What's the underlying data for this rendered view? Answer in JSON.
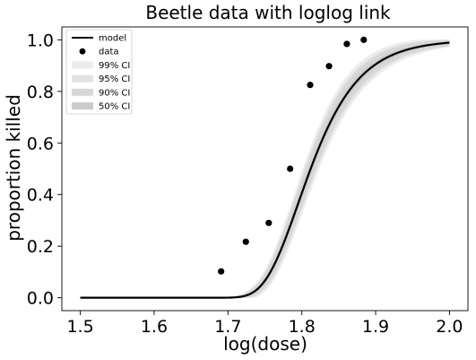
{
  "chart_data": {
    "type": "line",
    "title": "Beetle data with loglog link",
    "xlabel": "log(dose)",
    "ylabel": "proportion killed",
    "xlim": [
      1.475,
      2.025
    ],
    "ylim": [
      -0.05,
      1.05
    ],
    "xticks": [
      1.5,
      1.6,
      1.7,
      1.8,
      1.9,
      2.0
    ],
    "xtick_labels": [
      "1.5",
      "1.6",
      "1.7",
      "1.8",
      "1.9",
      "2.0"
    ],
    "yticks": [
      0.0,
      0.2,
      0.4,
      0.6,
      0.8,
      1.0
    ],
    "ytick_labels": [
      "0.0",
      "0.2",
      "0.4",
      "0.6",
      "0.8",
      "1.0"
    ],
    "grid": false,
    "legend_position": "top-left",
    "legend": [
      {
        "label": "model",
        "kind": "line",
        "color": "#000000"
      },
      {
        "label": "data",
        "kind": "marker",
        "color": "#000000"
      },
      {
        "label": "99% CI",
        "kind": "band",
        "color": "#ececec"
      },
      {
        "label": "95% CI",
        "kind": "band",
        "color": "#e2e2e2"
      },
      {
        "label": "90% CI",
        "kind": "band",
        "color": "#d7d7d7"
      },
      {
        "label": "50% CI",
        "kind": "band",
        "color": "#cbcbcb"
      }
    ],
    "model": {
      "name": "model",
      "link": "loglog",
      "intercept": -39.57,
      "slope": 22.04,
      "x_range": [
        1.5,
        2.0
      ],
      "color": "#000000"
    },
    "ci_bands": [
      {
        "name": "99% CI",
        "color": "#ececec",
        "width_scale": 1.0
      },
      {
        "name": "95% CI",
        "color": "#e2e2e2",
        "width_scale": 0.76
      },
      {
        "name": "90% CI",
        "color": "#d7d7d7",
        "width_scale": 0.64
      },
      {
        "name": "50% CI",
        "color": "#cbcbcb",
        "width_scale": 0.27
      }
    ],
    "data": {
      "name": "data",
      "x": [
        1.6907,
        1.7242,
        1.7552,
        1.7842,
        1.8113,
        1.8369,
        1.861,
        1.8839
      ],
      "y": [
        0.102,
        0.217,
        0.29,
        0.5,
        0.825,
        0.898,
        0.984,
        1.0
      ],
      "color": "#000000"
    }
  }
}
